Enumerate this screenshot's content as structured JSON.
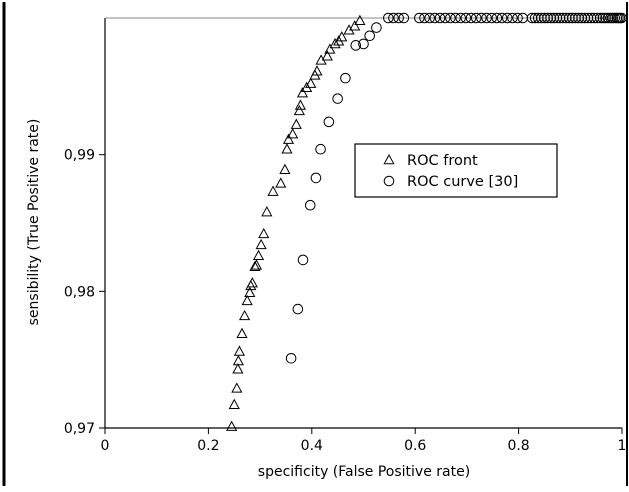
{
  "colors": {
    "background": "#ffffff",
    "axis": "#000000",
    "marker": "#000000"
  },
  "chart_data": {
    "type": "scatter",
    "xlabel": "specificity (False Positive rate)",
    "ylabel": "sensibility (True Positive rate)",
    "xlim": [
      0,
      1
    ],
    "ylim": [
      0.97,
      1.0
    ],
    "xticks": [
      0,
      0.2,
      0.4,
      0.6,
      0.8,
      1
    ],
    "xtick_labels": [
      "0",
      "0.2",
      "0.4",
      "0.6",
      "0.8",
      "1"
    ],
    "yticks": [
      0.97,
      0.98,
      0.99
    ],
    "ytick_labels": [
      "0,97",
      "0,98",
      "0,99"
    ],
    "grid": false,
    "legend_position": "upper-right",
    "series": [
      {
        "name": "ROC front",
        "marker": "triangle",
        "x": [
          0.245,
          0.25,
          0.255,
          0.257,
          0.258,
          0.26,
          0.265,
          0.27,
          0.275,
          0.28,
          0.282,
          0.285,
          0.29,
          0.293,
          0.297,
          0.302,
          0.307,
          0.313,
          0.325,
          0.34,
          0.348,
          0.352,
          0.355,
          0.363,
          0.37,
          0.376,
          0.378,
          0.382,
          0.39,
          0.398,
          0.406,
          0.41,
          0.418,
          0.43,
          0.435,
          0.445,
          0.452,
          0.458,
          0.472,
          0.483,
          0.493
        ],
        "y": [
          0.9701,
          0.9717,
          0.9729,
          0.9743,
          0.9749,
          0.9756,
          0.9769,
          0.9782,
          0.9793,
          0.9799,
          0.9804,
          0.9806,
          0.9818,
          0.9819,
          0.9826,
          0.9834,
          0.9842,
          0.9858,
          0.9873,
          0.9879,
          0.9889,
          0.9904,
          0.9911,
          0.9915,
          0.9922,
          0.9932,
          0.9936,
          0.9945,
          0.9949,
          0.9952,
          0.9958,
          0.9961,
          0.9969,
          0.9972,
          0.9977,
          0.9981,
          0.9983,
          0.9986,
          0.9991,
          0.9994,
          0.9998
        ]
      },
      {
        "name": "ROC curve [30]",
        "marker": "circle",
        "x": [
          0.36,
          0.373,
          0.383,
          0.397,
          0.408,
          0.417,
          0.433,
          0.45,
          0.465,
          0.485,
          0.5,
          0.512,
          0.525,
          0.548,
          0.558,
          0.568,
          0.578,
          0.608,
          0.618,
          0.628,
          0.638,
          0.648,
          0.658,
          0.668,
          0.678,
          0.688,
          0.698,
          0.708,
          0.718,
          0.728,
          0.738,
          0.748,
          0.758,
          0.768,
          0.778,
          0.788,
          0.798,
          0.808,
          0.826,
          0.832,
          0.838,
          0.844,
          0.85,
          0.856,
          0.862,
          0.868,
          0.874,
          0.88,
          0.886,
          0.892,
          0.898,
          0.904,
          0.91,
          0.916,
          0.922,
          0.928,
          0.934,
          0.94,
          0.946,
          0.952,
          0.958,
          0.963,
          0.968,
          0.973,
          0.978,
          0.982,
          0.986,
          0.99,
          0.993,
          0.996,
          0.999
        ],
        "y": [
          0.9751,
          0.9787,
          0.9823,
          0.9863,
          0.9883,
          0.9904,
          0.9924,
          0.9941,
          0.9956,
          0.998,
          0.9981,
          0.9987,
          0.9993,
          1.0,
          1.0,
          1.0,
          1.0,
          1.0,
          1.0,
          1.0,
          1.0,
          1.0,
          1.0,
          1.0,
          1.0,
          1.0,
          1.0,
          1.0,
          1.0,
          1.0,
          1.0,
          1.0,
          1.0,
          1.0,
          1.0,
          1.0,
          1.0,
          1.0,
          1.0,
          1.0,
          1.0,
          1.0,
          1.0,
          1.0,
          1.0,
          1.0,
          1.0,
          1.0,
          1.0,
          1.0,
          1.0,
          1.0,
          1.0,
          1.0,
          1.0,
          1.0,
          1.0,
          1.0,
          1.0,
          1.0,
          1.0,
          1.0,
          1.0,
          1.0,
          1.0,
          1.0,
          1.0,
          1.0,
          1.0,
          1.0,
          1.0
        ]
      }
    ]
  }
}
